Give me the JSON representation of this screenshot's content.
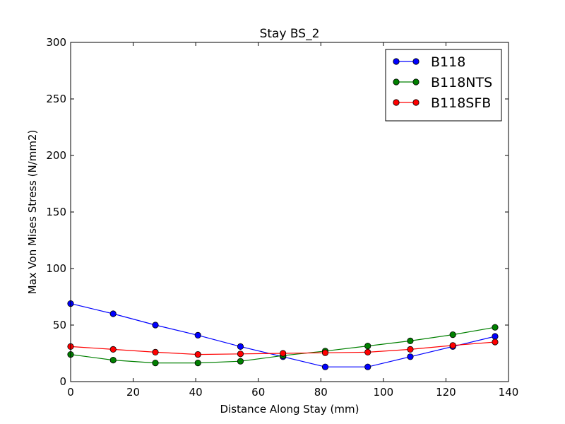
{
  "chart_data": {
    "type": "line",
    "title": "Stay BS_2",
    "xlabel": "Distance Along Stay (mm)",
    "ylabel": "Max Von Mises Stress (N/mm2)",
    "xlim": [
      0,
      140
    ],
    "ylim": [
      0,
      300
    ],
    "xticks": [
      0,
      20,
      40,
      60,
      80,
      100,
      120,
      140
    ],
    "yticks": [
      0,
      50,
      100,
      150,
      200,
      250,
      300
    ],
    "grid": false,
    "legend_position": "top-right",
    "x": [
      0,
      13.6,
      27.1,
      40.7,
      54.3,
      67.9,
      81.4,
      95.0,
      108.6,
      122.2,
      135.7
    ],
    "series": [
      {
        "name": "B118",
        "color": "#0000ff",
        "values": [
          69,
          60,
          50,
          41,
          31,
          22,
          13,
          13,
          22,
          31,
          40
        ]
      },
      {
        "name": "B118NTS",
        "color": "#008000",
        "values": [
          24,
          19,
          16.5,
          16.5,
          18,
          23,
          27,
          31.5,
          36,
          41.5,
          48
        ]
      },
      {
        "name": "B118SFB",
        "color": "#ff0000",
        "values": [
          31,
          28.5,
          26,
          24,
          24.5,
          25,
          25.5,
          26,
          28.5,
          32,
          35
        ]
      }
    ]
  }
}
